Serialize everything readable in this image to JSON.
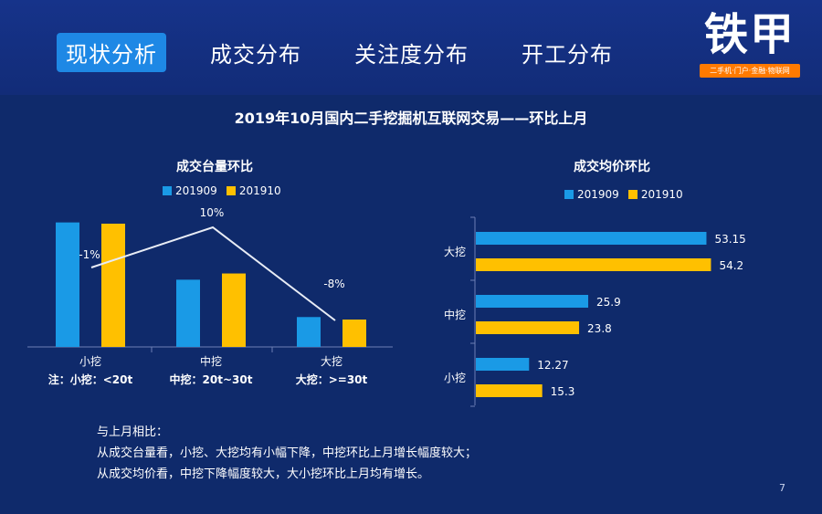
{
  "nav": {
    "tabs": [
      {
        "label": "现状分析",
        "active": true
      },
      {
        "label": "成交分布",
        "active": false
      },
      {
        "label": "关注度分布",
        "active": false
      },
      {
        "label": "开工分布",
        "active": false
      }
    ]
  },
  "logo": {
    "text": "铁甲",
    "tagline": "二手机·门户·金融·物联网"
  },
  "page_title": "2019年10月国内二手挖掘机互联网交易——环比上月",
  "notes": {
    "line1": "与上月相比：",
    "line2": "从成交台量看，小挖、大挖均有小幅下降，中挖环比上月增长幅度较大；",
    "line3": "从成交均价看，中挖下降幅度较大，大小挖环比上月均有增长。"
  },
  "page_number": "7",
  "colors": {
    "s201909": "#1a9ae6",
    "s201910": "#ffc000",
    "background": "#0f2a6b",
    "active_tab": "#1e88e5",
    "logo_accent": "#ff7a00"
  },
  "chart_data": [
    {
      "type": "bar",
      "title": "成交台量环比",
      "categories": [
        "小挖",
        "中挖",
        "大挖"
      ],
      "category_notes": [
        "注：小挖：<20t",
        "中挖：20t~30t",
        "大挖：>=30t"
      ],
      "series": [
        {
          "name": "201909",
          "values": [
            100,
            54,
            24
          ]
        },
        {
          "name": "201910",
          "values": [
            99,
            59,
            22
          ]
        }
      ],
      "change_line": {
        "labels": [
          "-1%",
          "10%",
          "-8%"
        ],
        "values": [
          -1,
          10,
          -8
        ]
      },
      "legend": "top",
      "ylim": [
        0,
        110
      ],
      "grid": false
    },
    {
      "type": "bar",
      "orientation": "horizontal",
      "title": "成交均价环比",
      "categories": [
        "大挖",
        "中挖",
        "小挖"
      ],
      "series": [
        {
          "name": "201909",
          "values": [
            53.15,
            25.9,
            12.27
          ]
        },
        {
          "name": "201910",
          "values": [
            54.2,
            23.8,
            15.3
          ]
        }
      ],
      "value_labels": [
        [
          "53.15",
          "25.9",
          "12.27"
        ],
        [
          "54.2",
          "23.8",
          "15.3"
        ]
      ],
      "legend": "top",
      "xlim": [
        0,
        60
      ],
      "grid": false
    }
  ]
}
